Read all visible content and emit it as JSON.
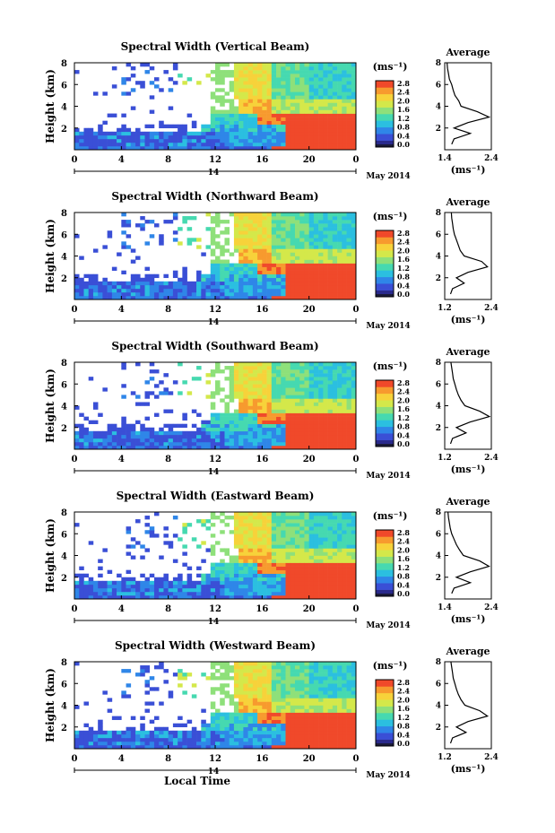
{
  "figure": {
    "date_label": "May 2014",
    "day_label": "14",
    "xlabel": "Local Time",
    "ylabel": "Height (km)",
    "x_ticks": [
      "0",
      "4",
      "8",
      "12",
      "16",
      "20",
      "0"
    ],
    "y_ticks": [
      "2",
      "4",
      "6",
      "8"
    ],
    "colorbar_unit": "(ms⁻¹)",
    "colorbar_ticks": [
      "0.0",
      "0.4",
      "0.8",
      "1.2",
      "1.6",
      "2.0",
      "2.4",
      "2.8"
    ],
    "average_title": "Average",
    "average_unit": "(ms⁻¹)",
    "colormap": [
      "#2a2a8c",
      "#3a4fd6",
      "#2f86e8",
      "#2bbfe0",
      "#46d9b0",
      "#8ee07a",
      "#d4e84a",
      "#f7d23a",
      "#f79a2e",
      "#f0492a"
    ]
  },
  "chart_data": [
    {
      "type": "heatmap",
      "title": "Spectral Width (Vertical Beam)",
      "xlim": [
        0,
        24
      ],
      "ylim": [
        0,
        8
      ],
      "clim": [
        0,
        2.8
      ],
      "average_profile": {
        "x_ticks": [
          "1.4",
          "2.4"
        ],
        "xlim": [
          1.4,
          2.4
        ],
        "ylim": [
          0,
          8
        ],
        "height_km": [
          0.5,
          1.0,
          1.5,
          2.0,
          2.5,
          3.0,
          3.5,
          4.0,
          4.5,
          5.0,
          5.5,
          6.0,
          6.5,
          7.0,
          7.5,
          8.0
        ],
        "width_ms": [
          1.55,
          1.6,
          1.95,
          1.6,
          1.9,
          2.35,
          2.1,
          1.75,
          1.7,
          1.62,
          1.58,
          1.55,
          1.5,
          1.48,
          1.46,
          1.45
        ]
      }
    },
    {
      "type": "heatmap",
      "title": "Spectral Width (Northward Beam)",
      "xlim": [
        0,
        24
      ],
      "ylim": [
        0,
        8
      ],
      "clim": [
        0,
        2.8
      ],
      "average_profile": {
        "x_ticks": [
          "1.2",
          "2.4"
        ],
        "xlim": [
          1.2,
          2.4
        ],
        "ylim": [
          0,
          8
        ],
        "height_km": [
          0.5,
          1.0,
          1.5,
          2.0,
          2.5,
          3.0,
          3.5,
          4.0,
          4.5,
          5.0,
          5.5,
          6.0,
          6.5,
          7.0,
          7.5,
          8.0
        ],
        "width_ms": [
          1.35,
          1.4,
          1.7,
          1.5,
          1.8,
          2.3,
          2.15,
          1.7,
          1.6,
          1.55,
          1.5,
          1.45,
          1.42,
          1.4,
          1.38,
          1.37
        ]
      }
    },
    {
      "type": "heatmap",
      "title": "Spectral Width (Southward Beam)",
      "xlim": [
        0,
        24
      ],
      "ylim": [
        0,
        8
      ],
      "clim": [
        0,
        2.8
      ],
      "average_profile": {
        "x_ticks": [
          "1.2",
          "2.4"
        ],
        "xlim": [
          1.2,
          2.4
        ],
        "ylim": [
          0,
          8
        ],
        "height_km": [
          0.5,
          1.0,
          1.5,
          2.0,
          2.5,
          3.0,
          3.5,
          4.0,
          4.5,
          5.0,
          5.5,
          6.0,
          6.5,
          7.0,
          7.5,
          8.0
        ],
        "width_ms": [
          1.35,
          1.4,
          1.75,
          1.5,
          1.85,
          2.35,
          2.1,
          1.72,
          1.62,
          1.55,
          1.5,
          1.46,
          1.42,
          1.4,
          1.38,
          1.36
        ]
      }
    },
    {
      "type": "heatmap",
      "title": "Spectral Width (Eastward Beam)",
      "xlim": [
        0,
        24
      ],
      "ylim": [
        0,
        8
      ],
      "clim": [
        0,
        2.8
      ],
      "average_profile": {
        "x_ticks": [
          "1.4",
          "2.4"
        ],
        "xlim": [
          1.4,
          2.4
        ],
        "ylim": [
          0,
          8
        ],
        "height_km": [
          0.5,
          1.0,
          1.5,
          2.0,
          2.5,
          3.0,
          3.5,
          4.0,
          4.5,
          5.0,
          5.5,
          6.0,
          6.5,
          7.0,
          7.5,
          8.0
        ],
        "width_ms": [
          1.55,
          1.6,
          1.95,
          1.65,
          1.95,
          2.35,
          2.15,
          1.8,
          1.72,
          1.65,
          1.6,
          1.55,
          1.52,
          1.5,
          1.48,
          1.47
        ]
      }
    },
    {
      "type": "heatmap",
      "title": "Spectral Width (Westward Beam)",
      "xlim": [
        0,
        24
      ],
      "ylim": [
        0,
        8
      ],
      "clim": [
        0,
        2.8
      ],
      "average_profile": {
        "x_ticks": [
          "1.2",
          "2.4"
        ],
        "xlim": [
          1.2,
          2.4
        ],
        "ylim": [
          0,
          8
        ],
        "height_km": [
          0.5,
          1.0,
          1.5,
          2.0,
          2.5,
          3.0,
          3.5,
          4.0,
          4.5,
          5.0,
          5.5,
          6.0,
          6.5,
          7.0,
          7.5,
          8.0
        ],
        "width_ms": [
          1.35,
          1.4,
          1.75,
          1.5,
          1.8,
          2.3,
          2.1,
          1.72,
          1.62,
          1.55,
          1.5,
          1.46,
          1.42,
          1.4,
          1.38,
          1.36
        ]
      }
    }
  ]
}
